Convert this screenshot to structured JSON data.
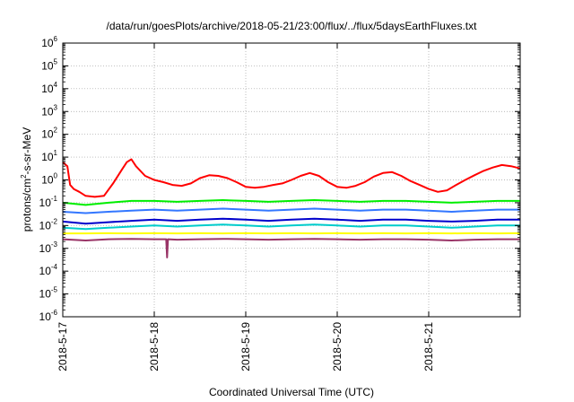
{
  "chart_data": {
    "type": "line",
    "title": "/data/run/goesPlots/archive/2018-05-21/23:00/flux/../flux/5daysEarthFluxes.txt",
    "xlabel": "Coordinated Universal Time (UTC)",
    "ylabel": {
      "prefix": "protons/cm",
      "superscript": "2",
      "suffix": "-s-sr-MeV"
    },
    "yscale": "log",
    "ylim": [
      1e-06,
      1000000.0
    ],
    "y_ticks": [
      {
        "base": "10",
        "exp": "-6",
        "value": 1e-06
      },
      {
        "base": "10",
        "exp": "-5",
        "value": 1e-05
      },
      {
        "base": "10",
        "exp": "-4",
        "value": 0.0001
      },
      {
        "base": "10",
        "exp": "-3",
        "value": 0.001
      },
      {
        "base": "10",
        "exp": "-2",
        "value": 0.01
      },
      {
        "base": "10",
        "exp": "-1",
        "value": 0.1
      },
      {
        "base": "10",
        "exp": "0",
        "value": 1
      },
      {
        "base": "10",
        "exp": "1",
        "value": 10
      },
      {
        "base": "10",
        "exp": "2",
        "value": 100
      },
      {
        "base": "10",
        "exp": "3",
        "value": 1000
      },
      {
        "base": "10",
        "exp": "4",
        "value": 10000
      },
      {
        "base": "10",
        "exp": "5",
        "value": 100000
      },
      {
        "base": "10",
        "exp": "6",
        "value": 1000000
      }
    ],
    "x_unit": "day",
    "xlim": [
      0,
      5.0
    ],
    "x_ticks": [
      {
        "label": "2018-5-17",
        "value": 0
      },
      {
        "label": "2018-5-18",
        "value": 1
      },
      {
        "label": "2018-5-19",
        "value": 2
      },
      {
        "label": "2018-5-20",
        "value": 3
      },
      {
        "label": "2018-5-21",
        "value": 4
      }
    ],
    "grid": true,
    "legend": "none",
    "series": [
      {
        "color": "#ff0000",
        "x": [
          0,
          0.05,
          0.08,
          0.12,
          0.18,
          0.25,
          0.35,
          0.45,
          0.55,
          0.65,
          0.7,
          0.75,
          0.8,
          0.9,
          1.0,
          1.1,
          1.2,
          1.3,
          1.4,
          1.5,
          1.6,
          1.7,
          1.8,
          1.9,
          2.0,
          2.1,
          2.2,
          2.3,
          2.4,
          2.5,
          2.6,
          2.7,
          2.8,
          2.9,
          3.0,
          3.1,
          3.2,
          3.3,
          3.4,
          3.5,
          3.6,
          3.7,
          3.8,
          3.9,
          4.0,
          4.1,
          4.2,
          4.3,
          4.4,
          4.5,
          4.6,
          4.7,
          4.8,
          4.9,
          5.0
        ],
        "values": [
          6,
          4,
          0.6,
          0.4,
          0.3,
          0.2,
          0.18,
          0.2,
          0.7,
          3,
          6,
          8,
          4,
          1.5,
          1.0,
          0.8,
          0.6,
          0.55,
          0.7,
          1.2,
          1.6,
          1.5,
          1.2,
          0.8,
          0.5,
          0.45,
          0.5,
          0.6,
          0.7,
          1.0,
          1.5,
          2.0,
          1.5,
          0.8,
          0.5,
          0.45,
          0.55,
          0.8,
          1.4,
          2.0,
          2.2,
          1.5,
          0.9,
          0.6,
          0.4,
          0.3,
          0.35,
          0.6,
          1.0,
          1.6,
          2.5,
          3.5,
          4.5,
          4.0,
          3.2
        ]
      },
      {
        "color": "#00ee00",
        "x": [
          0,
          0.25,
          0.5,
          0.75,
          1.0,
          1.25,
          1.5,
          1.75,
          2.0,
          2.25,
          2.5,
          2.75,
          3.0,
          3.25,
          3.5,
          3.75,
          4.0,
          4.25,
          4.5,
          4.75,
          5.0
        ],
        "values": [
          0.1,
          0.08,
          0.1,
          0.12,
          0.12,
          0.11,
          0.12,
          0.13,
          0.12,
          0.11,
          0.12,
          0.13,
          0.12,
          0.11,
          0.12,
          0.12,
          0.11,
          0.1,
          0.11,
          0.12,
          0.12
        ]
      },
      {
        "color": "#3377ff",
        "x": [
          0,
          0.25,
          0.5,
          0.75,
          1.0,
          1.25,
          1.5,
          1.75,
          2.0,
          2.25,
          2.5,
          2.75,
          3.0,
          3.25,
          3.5,
          3.75,
          4.0,
          4.25,
          4.5,
          4.75,
          5.0
        ],
        "values": [
          0.04,
          0.035,
          0.04,
          0.045,
          0.05,
          0.045,
          0.05,
          0.055,
          0.05,
          0.045,
          0.05,
          0.055,
          0.05,
          0.045,
          0.05,
          0.05,
          0.045,
          0.04,
          0.045,
          0.05,
          0.05
        ]
      },
      {
        "color": "#0000cc",
        "x": [
          0,
          0.25,
          0.5,
          0.75,
          1.0,
          1.25,
          1.5,
          1.75,
          2.0,
          2.25,
          2.5,
          2.75,
          3.0,
          3.25,
          3.5,
          3.75,
          4.0,
          4.25,
          4.5,
          4.75,
          5.0
        ],
        "values": [
          0.015,
          0.012,
          0.014,
          0.016,
          0.018,
          0.016,
          0.018,
          0.02,
          0.018,
          0.016,
          0.018,
          0.02,
          0.018,
          0.016,
          0.018,
          0.018,
          0.016,
          0.015,
          0.016,
          0.018,
          0.018
        ]
      },
      {
        "color": "#00cccc",
        "x": [
          0,
          0.25,
          0.5,
          0.75,
          1.0,
          1.25,
          1.5,
          1.75,
          2.0,
          2.25,
          2.5,
          2.75,
          3.0,
          3.25,
          3.5,
          3.75,
          4.0,
          4.25,
          4.5,
          4.75,
          5.0
        ],
        "values": [
          0.008,
          0.007,
          0.008,
          0.009,
          0.01,
          0.009,
          0.01,
          0.011,
          0.01,
          0.009,
          0.01,
          0.011,
          0.01,
          0.009,
          0.01,
          0.01,
          0.009,
          0.008,
          0.009,
          0.01,
          0.01
        ]
      },
      {
        "color": "#ffff00",
        "x": [
          0,
          0.25,
          0.5,
          0.75,
          1.0,
          1.25,
          1.5,
          1.75,
          2.0,
          2.25,
          2.5,
          2.75,
          3.0,
          3.25,
          3.5,
          3.75,
          4.0,
          4.25,
          4.5,
          4.75,
          5.0
        ],
        "values": [
          0.0045,
          0.0045,
          0.0046,
          0.0045,
          0.0046,
          0.0045,
          0.0046,
          0.0045,
          0.0046,
          0.0045,
          0.0046,
          0.0045,
          0.0046,
          0.0045,
          0.0046,
          0.0045,
          0.0046,
          0.0045,
          0.0046,
          0.0045,
          0.0046
        ]
      },
      {
        "color": "#993366",
        "x": [
          0,
          0.25,
          0.5,
          0.75,
          1.0,
          1.13,
          1.14,
          1.15,
          1.25,
          1.5,
          1.75,
          2.0,
          2.25,
          2.5,
          2.75,
          3.0,
          3.25,
          3.5,
          3.75,
          4.0,
          4.25,
          4.5,
          4.75,
          5.0
        ],
        "values": [
          0.0025,
          0.0022,
          0.0025,
          0.0026,
          0.0025,
          0.0025,
          0.0004,
          0.0025,
          0.0024,
          0.0025,
          0.0026,
          0.0025,
          0.0024,
          0.0025,
          0.0026,
          0.0025,
          0.0024,
          0.0025,
          0.0025,
          0.0024,
          0.0022,
          0.0024,
          0.0025,
          0.0025
        ]
      }
    ]
  }
}
